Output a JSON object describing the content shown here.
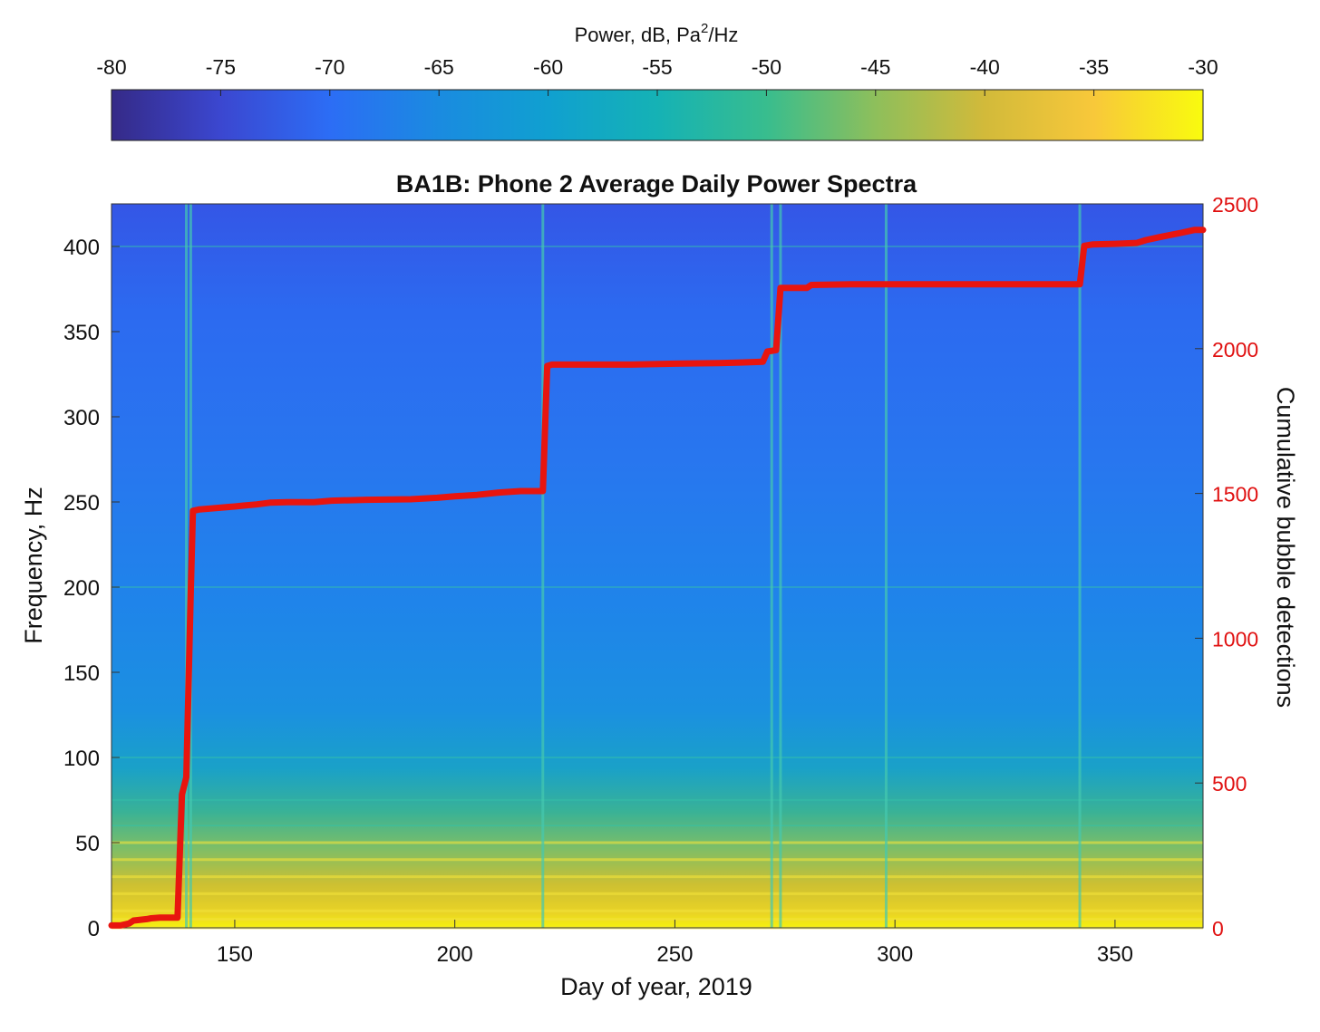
{
  "chart_data": {
    "type": "heatmap",
    "title": "BA1B: Phone 2 Average Daily Power Spectra",
    "xlabel": "Day of year, 2019",
    "ylabel": "Frequency, Hz",
    "y2label": "Cumulative bubble detections",
    "xlim": [
      122,
      370
    ],
    "ylim": [
      0,
      425
    ],
    "y2lim": [
      0,
      2500
    ],
    "x_ticks": [
      150,
      200,
      250,
      300,
      350
    ],
    "y_ticks": [
      0,
      50,
      100,
      150,
      200,
      250,
      300,
      350,
      400
    ],
    "y2_ticks": [
      0,
      500,
      1000,
      1500,
      2000,
      2500
    ],
    "colorbar": {
      "label": "Power, dB, Pa",
      "label_sup": "2",
      "label_tail": "/Hz",
      "range": [
        -80,
        -30
      ],
      "ticks": [
        -80,
        -75,
        -70,
        -65,
        -60,
        -55,
        -50,
        -45,
        -40,
        -35,
        -30
      ],
      "colormap": "parula"
    },
    "spectrogram_features": {
      "bright_days": [
        139,
        140,
        220,
        272,
        274,
        298,
        342
      ],
      "tonal_bands_hz": [
        0,
        5,
        10,
        20,
        30,
        40,
        50,
        60,
        75,
        100,
        200,
        400
      ]
    },
    "series": [
      {
        "type": "line",
        "axis": "right",
        "color": "#e8150f",
        "x": [
          122,
          124,
          126,
          127,
          130,
          131,
          133,
          134,
          137,
          138,
          139,
          140,
          140.5,
          142,
          146,
          150,
          152,
          155,
          158,
          162,
          168,
          172,
          180,
          190,
          196,
          200,
          205,
          210,
          215,
          220,
          221,
          222,
          230,
          240,
          250,
          260,
          265,
          270,
          271,
          273,
          274,
          276,
          280,
          281,
          290,
          300,
          320,
          340,
          342,
          343,
          345,
          350,
          355,
          357,
          360,
          365,
          368,
          370
        ],
        "y": [
          8,
          8,
          15,
          25,
          30,
          33,
          35,
          35,
          35,
          460,
          520,
          1160,
          1440,
          1445,
          1450,
          1455,
          1458,
          1462,
          1468,
          1470,
          1470,
          1475,
          1478,
          1480,
          1485,
          1490,
          1495,
          1503,
          1508,
          1508,
          1940,
          1945,
          1945,
          1945,
          1948,
          1950,
          1952,
          1955,
          1990,
          1995,
          2210,
          2210,
          2210,
          2220,
          2222,
          2222,
          2222,
          2222,
          2222,
          2355,
          2360,
          2362,
          2365,
          2375,
          2385,
          2400,
          2410,
          2410
        ]
      }
    ]
  }
}
